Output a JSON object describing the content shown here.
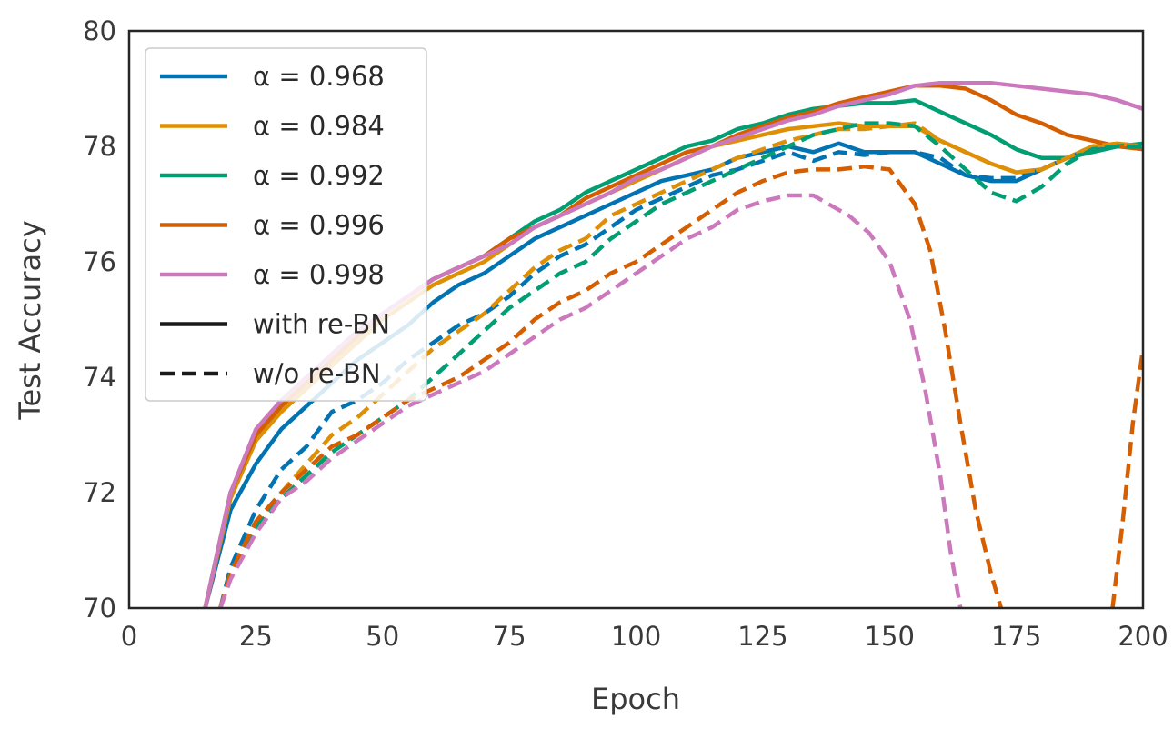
{
  "chart_data": {
    "type": "line",
    "xlabel": "Epoch",
    "ylabel": "Test Accuracy",
    "xlim": [
      0,
      200
    ],
    "ylim": [
      70,
      80
    ],
    "xticks": [
      0,
      25,
      50,
      75,
      100,
      125,
      150,
      175,
      200
    ],
    "yticks": [
      70,
      72,
      74,
      76,
      78,
      80
    ],
    "grid": false,
    "legend_position": "top-left",
    "legend": {
      "alpha_entries": [
        {
          "label": "α = 0.968",
          "color": "#0173b2"
        },
        {
          "label": "α = 0.984",
          "color": "#de8f05"
        },
        {
          "label": "α = 0.992",
          "color": "#029e73"
        },
        {
          "label": "α = 0.996",
          "color": "#d55e00"
        },
        {
          "label": "α = 0.998",
          "color": "#cc78bc"
        }
      ],
      "style_entries": [
        {
          "label": "with re-BN",
          "dash": "solid"
        },
        {
          "label": "w/o re-BN",
          "dash": "dashed"
        }
      ]
    },
    "series": [
      {
        "name": "α = 0.968",
        "style": "with re-BN",
        "color": "#0173b2",
        "dash": "solid",
        "x": [
          15,
          20,
          25,
          30,
          35,
          40,
          45,
          50,
          55,
          60,
          65,
          70,
          75,
          80,
          85,
          90,
          95,
          100,
          105,
          110,
          115,
          120,
          125,
          130,
          135,
          140,
          145,
          150,
          155,
          160,
          165,
          170,
          175,
          180,
          185,
          190,
          195,
          200
        ],
        "y": [
          70.0,
          71.7,
          72.5,
          73.1,
          73.5,
          73.9,
          74.3,
          74.6,
          74.9,
          75.3,
          75.6,
          75.8,
          76.1,
          76.4,
          76.6,
          76.8,
          77.0,
          77.2,
          77.4,
          77.5,
          77.6,
          77.8,
          77.9,
          78.0,
          77.9,
          78.05,
          77.9,
          77.9,
          77.9,
          77.7,
          77.5,
          77.4,
          77.4,
          77.6,
          77.8,
          77.95,
          78.0,
          78.0
        ]
      },
      {
        "name": "α = 0.984",
        "style": "with re-BN",
        "color": "#de8f05",
        "dash": "solid",
        "x": [
          15,
          20,
          25,
          30,
          35,
          40,
          45,
          50,
          55,
          60,
          65,
          70,
          75,
          80,
          85,
          90,
          95,
          100,
          105,
          110,
          115,
          120,
          125,
          130,
          135,
          140,
          145,
          150,
          155,
          160,
          165,
          170,
          175,
          180,
          185,
          190,
          195,
          200
        ],
        "y": [
          70.0,
          71.9,
          72.9,
          73.4,
          73.8,
          74.2,
          74.6,
          75.0,
          75.3,
          75.6,
          75.8,
          76.0,
          76.3,
          76.6,
          76.8,
          77.0,
          77.2,
          77.4,
          77.6,
          77.8,
          78.0,
          78.1,
          78.2,
          78.3,
          78.35,
          78.4,
          78.35,
          78.35,
          78.35,
          78.1,
          77.9,
          77.7,
          77.55,
          77.6,
          77.8,
          78.0,
          78.05,
          78.0
        ]
      },
      {
        "name": "α = 0.992",
        "style": "with re-BN",
        "color": "#029e73",
        "dash": "solid",
        "x": [
          15,
          20,
          25,
          30,
          35,
          40,
          45,
          50,
          55,
          60,
          65,
          70,
          75,
          80,
          85,
          90,
          95,
          100,
          105,
          110,
          115,
          120,
          125,
          130,
          135,
          140,
          145,
          150,
          155,
          160,
          165,
          170,
          175,
          180,
          185,
          190,
          195,
          200
        ],
        "y": [
          70.0,
          72.0,
          73.0,
          73.5,
          73.9,
          74.3,
          74.7,
          75.1,
          75.4,
          75.7,
          75.9,
          76.1,
          76.4,
          76.7,
          76.9,
          77.2,
          77.4,
          77.6,
          77.8,
          78.0,
          78.1,
          78.3,
          78.4,
          78.55,
          78.65,
          78.7,
          78.75,
          78.75,
          78.8,
          78.6,
          78.4,
          78.2,
          77.95,
          77.8,
          77.8,
          77.9,
          78.0,
          78.05
        ]
      },
      {
        "name": "α = 0.996",
        "style": "with re-BN",
        "color": "#d55e00",
        "dash": "solid",
        "x": [
          15,
          20,
          25,
          30,
          35,
          40,
          45,
          50,
          55,
          60,
          65,
          70,
          75,
          80,
          85,
          90,
          95,
          100,
          105,
          110,
          115,
          120,
          125,
          130,
          135,
          140,
          145,
          150,
          155,
          160,
          165,
          170,
          175,
          180,
          185,
          190,
          195,
          200
        ],
        "y": [
          70.0,
          72.0,
          73.0,
          73.5,
          73.9,
          74.3,
          74.7,
          75.1,
          75.4,
          75.7,
          75.9,
          76.1,
          76.4,
          76.6,
          76.8,
          77.1,
          77.3,
          77.5,
          77.7,
          77.9,
          78.0,
          78.2,
          78.35,
          78.5,
          78.6,
          78.75,
          78.85,
          78.95,
          79.05,
          79.05,
          79.0,
          78.8,
          78.55,
          78.4,
          78.2,
          78.1,
          78.0,
          77.95
        ]
      },
      {
        "name": "α = 0.998",
        "style": "with re-BN",
        "color": "#cc78bc",
        "dash": "solid",
        "x": [
          15,
          20,
          25,
          30,
          35,
          40,
          45,
          50,
          55,
          60,
          65,
          70,
          75,
          80,
          85,
          90,
          95,
          100,
          105,
          110,
          115,
          120,
          125,
          130,
          135,
          140,
          145,
          150,
          155,
          160,
          165,
          170,
          175,
          180,
          185,
          190,
          195,
          200
        ],
        "y": [
          70.0,
          72.0,
          73.1,
          73.6,
          74.0,
          74.4,
          74.8,
          75.1,
          75.4,
          75.7,
          75.9,
          76.1,
          76.3,
          76.6,
          76.8,
          77.0,
          77.2,
          77.45,
          77.6,
          77.8,
          78.0,
          78.15,
          78.3,
          78.45,
          78.55,
          78.7,
          78.8,
          78.9,
          79.05,
          79.1,
          79.1,
          79.1,
          79.05,
          79.0,
          78.95,
          78.9,
          78.8,
          78.65
        ]
      },
      {
        "name": "α = 0.968",
        "style": "w/o re-BN",
        "color": "#0173b2",
        "dash": "dashed",
        "x": [
          18,
          20,
          25,
          30,
          35,
          40,
          45,
          50,
          55,
          60,
          65,
          70,
          75,
          80,
          85,
          90,
          95,
          100,
          105,
          110,
          115,
          120,
          125,
          130,
          135,
          140,
          145,
          150,
          155,
          160,
          165,
          170,
          175,
          180,
          185,
          190,
          195,
          200
        ],
        "y": [
          70.0,
          70.7,
          71.7,
          72.4,
          72.8,
          73.4,
          73.6,
          73.9,
          74.3,
          74.6,
          74.9,
          75.1,
          75.4,
          75.8,
          76.1,
          76.3,
          76.6,
          76.9,
          77.1,
          77.3,
          77.5,
          77.6,
          77.75,
          77.9,
          77.75,
          77.9,
          77.85,
          77.9,
          77.9,
          77.8,
          77.5,
          77.45,
          77.45,
          77.6,
          77.8,
          77.95,
          78.0,
          78.0
        ]
      },
      {
        "name": "α = 0.984",
        "style": "w/o re-BN",
        "color": "#de8f05",
        "dash": "dashed",
        "x": [
          18,
          20,
          25,
          30,
          35,
          40,
          45,
          50,
          55,
          60,
          65,
          70,
          75,
          80,
          85,
          90,
          95,
          100,
          105,
          110,
          115,
          120,
          125,
          130,
          135,
          140,
          145,
          150,
          155,
          160,
          165,
          170,
          175,
          180,
          185,
          190,
          195,
          200
        ],
        "y": [
          70.0,
          70.6,
          71.5,
          72.0,
          72.5,
          73.0,
          73.3,
          73.7,
          74.1,
          74.5,
          74.8,
          75.1,
          75.5,
          75.9,
          76.2,
          76.4,
          76.8,
          77.0,
          77.2,
          77.4,
          77.6,
          77.8,
          77.95,
          78.1,
          78.2,
          78.3,
          78.3,
          78.35,
          78.4,
          78.1,
          77.9,
          77.7,
          77.55,
          77.6,
          77.8,
          78.0,
          78.05,
          78.0
        ]
      },
      {
        "name": "α = 0.992",
        "style": "w/o re-BN",
        "color": "#029e73",
        "dash": "dashed",
        "x": [
          18,
          20,
          25,
          30,
          35,
          40,
          45,
          50,
          55,
          60,
          65,
          70,
          75,
          80,
          85,
          90,
          95,
          100,
          105,
          110,
          115,
          120,
          125,
          130,
          135,
          140,
          145,
          150,
          155,
          160,
          165,
          170,
          175,
          180,
          185,
          190,
          195,
          200
        ],
        "y": [
          70.0,
          70.6,
          71.4,
          71.9,
          72.3,
          72.7,
          73.0,
          73.3,
          73.6,
          74.0,
          74.4,
          74.8,
          75.2,
          75.5,
          75.8,
          76.0,
          76.4,
          76.7,
          77.0,
          77.2,
          77.4,
          77.6,
          77.8,
          78.0,
          78.2,
          78.3,
          78.4,
          78.4,
          78.35,
          78.0,
          77.6,
          77.2,
          77.05,
          77.3,
          77.7,
          77.95,
          78.0,
          78.0
        ]
      },
      {
        "name": "α = 0.996",
        "style": "w/o re-BN",
        "color": "#d55e00",
        "dash": "dashed",
        "x": [
          18,
          20,
          25,
          30,
          35,
          40,
          45,
          50,
          55,
          60,
          65,
          70,
          75,
          80,
          85,
          90,
          95,
          100,
          105,
          110,
          115,
          120,
          125,
          130,
          135,
          140,
          145,
          150,
          155,
          158,
          161,
          164,
          167,
          170,
          172
        ],
        "y": [
          70.0,
          70.6,
          71.5,
          72.0,
          72.4,
          72.8,
          73.0,
          73.3,
          73.6,
          73.8,
          74.0,
          74.3,
          74.6,
          75.0,
          75.3,
          75.5,
          75.8,
          76.0,
          76.3,
          76.6,
          76.9,
          77.2,
          77.4,
          77.55,
          77.6,
          77.6,
          77.65,
          77.6,
          77.0,
          76.2,
          74.8,
          73.2,
          71.7,
          70.6,
          70.0
        ]
      },
      {
        "name": "α = 0.996",
        "style": "w/o re-BN",
        "color": "#d55e00",
        "dash": "dashed",
        "x": [
          194,
          196,
          198,
          200
        ],
        "y": [
          70.0,
          71.5,
          73.2,
          74.5
        ]
      },
      {
        "name": "α = 0.998",
        "style": "w/o re-BN",
        "color": "#cc78bc",
        "dash": "dashed",
        "x": [
          18,
          20,
          25,
          30,
          35,
          40,
          45,
          50,
          55,
          60,
          65,
          70,
          75,
          80,
          85,
          90,
          95,
          100,
          105,
          110,
          115,
          120,
          125,
          130,
          135,
          138,
          142,
          146,
          150,
          154,
          157,
          160,
          162,
          164
        ],
        "y": [
          70.0,
          70.5,
          71.3,
          71.9,
          72.2,
          72.6,
          72.9,
          73.2,
          73.5,
          73.7,
          73.9,
          74.1,
          74.4,
          74.7,
          75.0,
          75.2,
          75.5,
          75.8,
          76.1,
          76.4,
          76.6,
          76.9,
          77.05,
          77.15,
          77.15,
          77.0,
          76.8,
          76.5,
          76.0,
          75.0,
          73.8,
          72.3,
          71.0,
          70.0
        ]
      }
    ]
  }
}
